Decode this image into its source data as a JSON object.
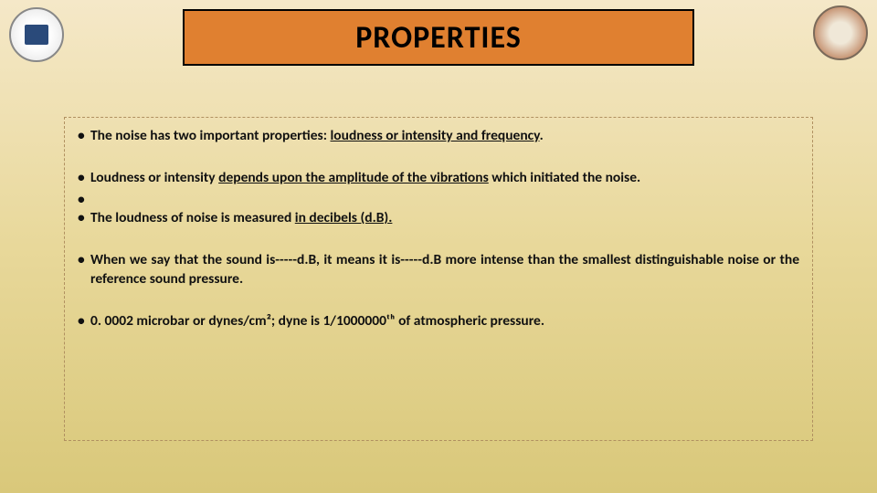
{
  "title": "PROPERTIES",
  "bullets": {
    "b1_pre": "The noise has two important properties",
    "b1_mid": ": ",
    "b1_u": "loudness or intensity and frequency",
    "b1_post": ".",
    "b2_pre": "Loudness or intensity ",
    "b2_u": "depends upon the amplitude of the vibrations",
    "b2_post": " which initiated the noise.",
    "b3": "",
    "b4_pre": "The loudness of noise is measured ",
    "b4_u": "in decibels (d.B).",
    "b5": "When we say that the sound is-----d.B, it means it is-----d.B more intense than the smallest distinguishable noise or the reference sound pressure.",
    "b6": "0. 0002 microbar or dynes/cm²; dyne is 1/1000000ᵗʰ of atmospheric pressure."
  },
  "colors": {
    "title_bg": "#e08030",
    "title_border": "#000000",
    "bg_top": "#f5e8c8",
    "bg_bottom": "#d9c87a",
    "box_border": "#b09060"
  }
}
